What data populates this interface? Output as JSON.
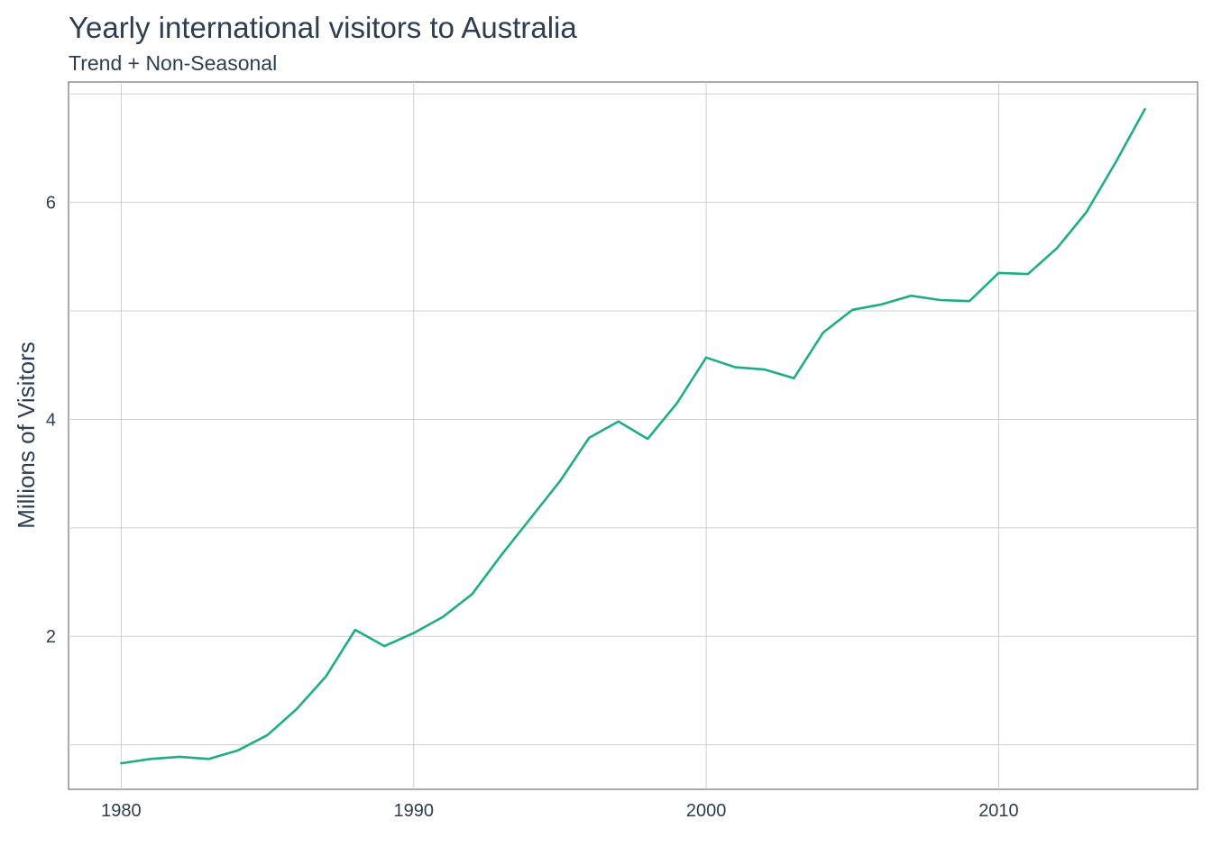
{
  "chart_data": {
    "type": "line",
    "title": "Yearly international visitors to Australia",
    "subtitle": "Trend + Non-Seasonal",
    "xlabel": "",
    "ylabel": "Millions of Visitors",
    "xlim": [
      1978.2,
      2016.8
    ],
    "ylim": [
      0.59,
      7.11
    ],
    "x_ticks": [
      1980,
      1990,
      2000,
      2010
    ],
    "y_ticks": [
      2,
      4,
      6
    ],
    "y_minor_gridlines": [
      1,
      3,
      5,
      7
    ],
    "grid": true,
    "color": "#1fad85",
    "series": [
      {
        "x": [
          1980,
          1981,
          1982,
          1983,
          1984,
          1985,
          1986,
          1987,
          1988,
          1989,
          1990,
          1991,
          1992,
          1993,
          1994,
          1995,
          1996,
          1997,
          1998,
          1999,
          2000,
          2001,
          2002,
          2003,
          2004,
          2005,
          2006,
          2007,
          2008,
          2009,
          2010,
          2011,
          2012,
          2013,
          2014,
          2015
        ],
        "values": [
          0.83,
          0.87,
          0.89,
          0.87,
          0.95,
          1.09,
          1.33,
          1.63,
          2.06,
          1.91,
          2.03,
          2.18,
          2.39,
          2.75,
          3.09,
          3.43,
          3.83,
          3.98,
          3.82,
          4.15,
          4.57,
          4.48,
          4.46,
          4.38,
          4.8,
          5.01,
          5.06,
          5.14,
          5.1,
          5.09,
          5.35,
          5.34,
          5.58,
          5.91,
          6.37,
          6.86
        ]
      }
    ]
  }
}
